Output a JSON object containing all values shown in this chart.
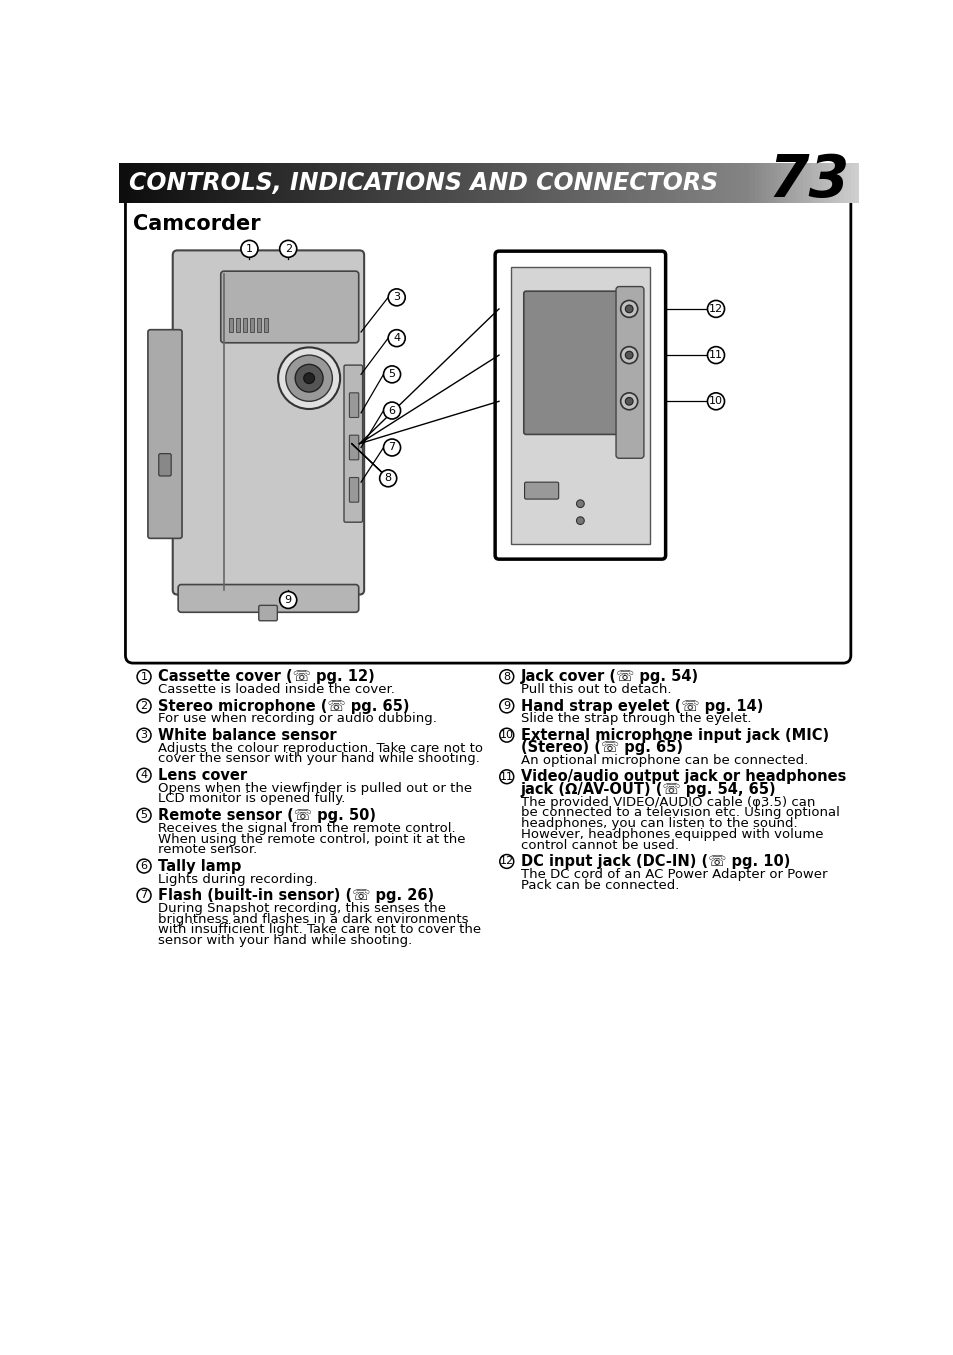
{
  "title": "CONTROLS, INDICATIONS AND CONNECTORS",
  "page_number": "73",
  "subtitle": "Camcorder",
  "bg_color": "#ffffff",
  "items_left": [
    {
      "num": "1",
      "bold": "Cassette cover (☏ pg. 12)",
      "desc": "Cassette is loaded inside the cover."
    },
    {
      "num": "2",
      "bold": "Stereo microphone (☏ pg. 65)",
      "desc": "For use when recording or audio dubbing."
    },
    {
      "num": "3",
      "bold": "White balance sensor",
      "desc": "Adjusts the colour reproduction. Take care not to\ncover the sensor with your hand while shooting."
    },
    {
      "num": "4",
      "bold": "Lens cover",
      "desc": "Opens when the viewfinder is pulled out or the\nLCD monitor is opened fully."
    },
    {
      "num": "5",
      "bold": "Remote sensor (☏ pg. 50)",
      "desc": "Receives the signal from the remote control.\nWhen using the remote control, point it at the\nremote sensor."
    },
    {
      "num": "6",
      "bold": "Tally lamp",
      "desc": "Lights during recording."
    },
    {
      "num": "7",
      "bold": "Flash (built-in sensor) (☏ pg. 26)",
      "desc": "During Snapshot recording, this senses the\nbrightness and flashes in a dark environments\nwith insufficient light. Take care not to cover the\nsensor with your hand while shooting."
    }
  ],
  "items_right": [
    {
      "num": "8",
      "bold": "Jack cover (☏ pg. 54)",
      "desc": "Pull this out to detach."
    },
    {
      "num": "9",
      "bold": "Hand strap eyelet (☏ pg. 14)",
      "desc": "Slide the strap through the eyelet."
    },
    {
      "num": "10",
      "bold": "External microphone input jack (MIC)\n(Stereo) (☏ pg. 65)",
      "desc": "An optional microphone can be connected."
    },
    {
      "num": "11",
      "bold": "Video/audio output jack or headphones\njack (Ω/AV-OUT) (☏ pg. 54, 65)",
      "desc": "The provided VIDEO/AUDIO cable (φ3.5) can\nbe connected to a television etc. Using optional\nheadphones, you can listen to the sound.\nHowever, headphones equipped with volume\ncontrol cannot be used."
    },
    {
      "num": "12",
      "bold": "DC input jack (DC-IN) (☏ pg. 10)",
      "desc": "The DC cord of an AC Power Adapter or Power\nPack can be connected."
    }
  ]
}
